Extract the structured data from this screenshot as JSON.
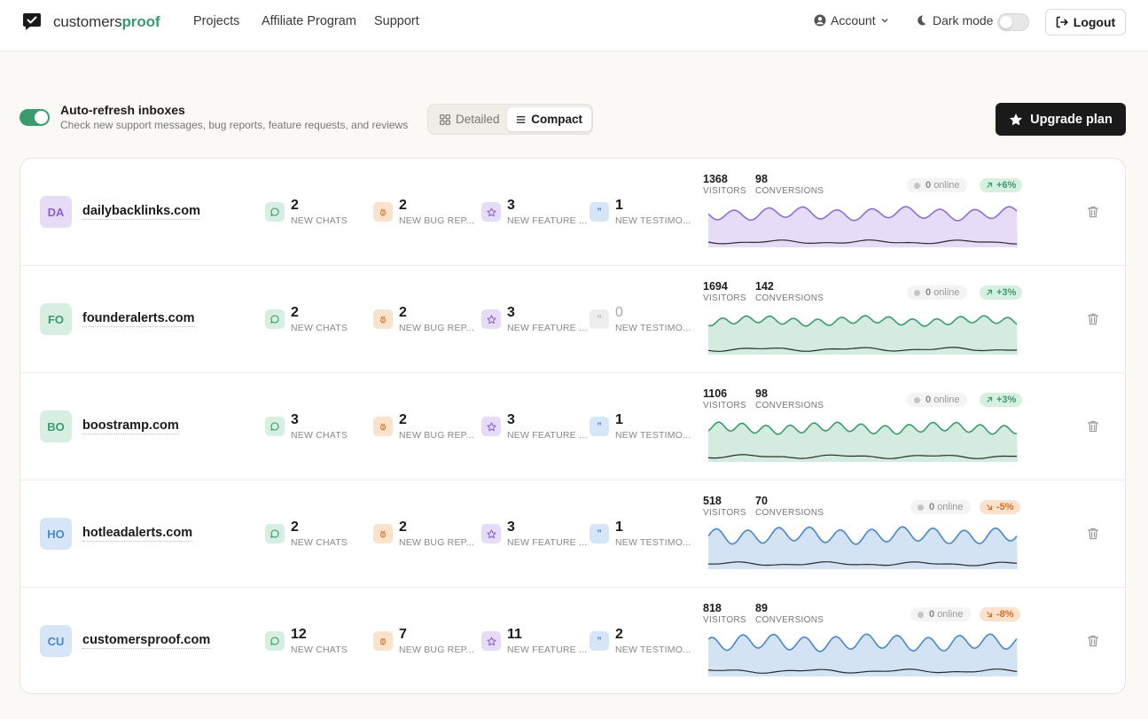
{
  "header": {
    "brand_prefix": "customers",
    "brand_suffix": "proof",
    "nav": [
      "Projects",
      "Affiliate Program",
      "Support"
    ],
    "account_label": "Account",
    "dark_mode_label": "Dark mode",
    "logout_label": "Logout"
  },
  "toolbar": {
    "auto_refresh_title": "Auto-refresh inboxes",
    "auto_refresh_sub": "Check new support messages, bug reports, feature requests, and reviews",
    "view_detailed": "Detailed",
    "view_compact": "Compact",
    "upgrade_label": "Upgrade plan"
  },
  "labels": {
    "chats": "NEW CHATS",
    "bugs": "NEW BUG REP...",
    "features": "NEW FEATURE ...",
    "testimonials": "NEW TESTIMO...",
    "visitors": "VISITORS",
    "conversions": "CONVERSIONS",
    "online_suffix": "online"
  },
  "colors": {
    "brand": "#3d9970",
    "purple_fill": "#e6dcf7",
    "purple_line": "#8a6fd6",
    "green_fill": "#d4ecdf",
    "green_line": "#3d9970",
    "blue_fill": "#d3e3f3",
    "blue_line": "#4a86c8"
  },
  "projects": [
    {
      "initials": "DA",
      "name": "dailybacklinks.com",
      "avatar_bg": "#e6dcf7",
      "avatar_fg": "#8a5fd1",
      "chats": "2",
      "bugs": "2",
      "features": "3",
      "testimonials": "1",
      "visitors": "1368",
      "conversions": "98",
      "online": "0",
      "trend": "+6%",
      "trend_dir": "up",
      "theme": "purple",
      "cycles": 9,
      "amp": 6
    },
    {
      "initials": "FO",
      "name": "founderalerts.com",
      "avatar_bg": "#d7efe2",
      "avatar_fg": "#3d9970",
      "chats": "2",
      "bugs": "2",
      "features": "3",
      "testimonials": "0",
      "visitors": "1694",
      "conversions": "142",
      "online": "0",
      "trend": "+3%",
      "trend_dir": "up",
      "theme": "green",
      "cycles": 13,
      "amp": 4
    },
    {
      "initials": "BO",
      "name": "boostramp.com",
      "avatar_bg": "#d7efe2",
      "avatar_fg": "#3d9970",
      "chats": "3",
      "bugs": "2",
      "features": "3",
      "testimonials": "1",
      "visitors": "1106",
      "conversions": "98",
      "online": "0",
      "trend": "+3%",
      "trend_dir": "up",
      "theme": "green",
      "cycles": 13,
      "amp": 5
    },
    {
      "initials": "HO",
      "name": "hotleadalerts.com",
      "avatar_bg": "#d6e6f8",
      "avatar_fg": "#4a86c8",
      "chats": "2",
      "bugs": "2",
      "features": "3",
      "testimonials": "1",
      "visitors": "518",
      "conversions": "70",
      "online": "0",
      "trend": "-5%",
      "trend_dir": "down",
      "theme": "blue",
      "cycles": 10,
      "amp": 8
    },
    {
      "initials": "CU",
      "name": "customersproof.com",
      "avatar_bg": "#d6e6f8",
      "avatar_fg": "#4a86c8",
      "chats": "12",
      "bugs": "7",
      "features": "11",
      "testimonials": "2",
      "visitors": "818",
      "conversions": "89",
      "online": "0",
      "trend": "-8%",
      "trend_dir": "down",
      "theme": "blue",
      "cycles": 10,
      "amp": 8
    }
  ]
}
